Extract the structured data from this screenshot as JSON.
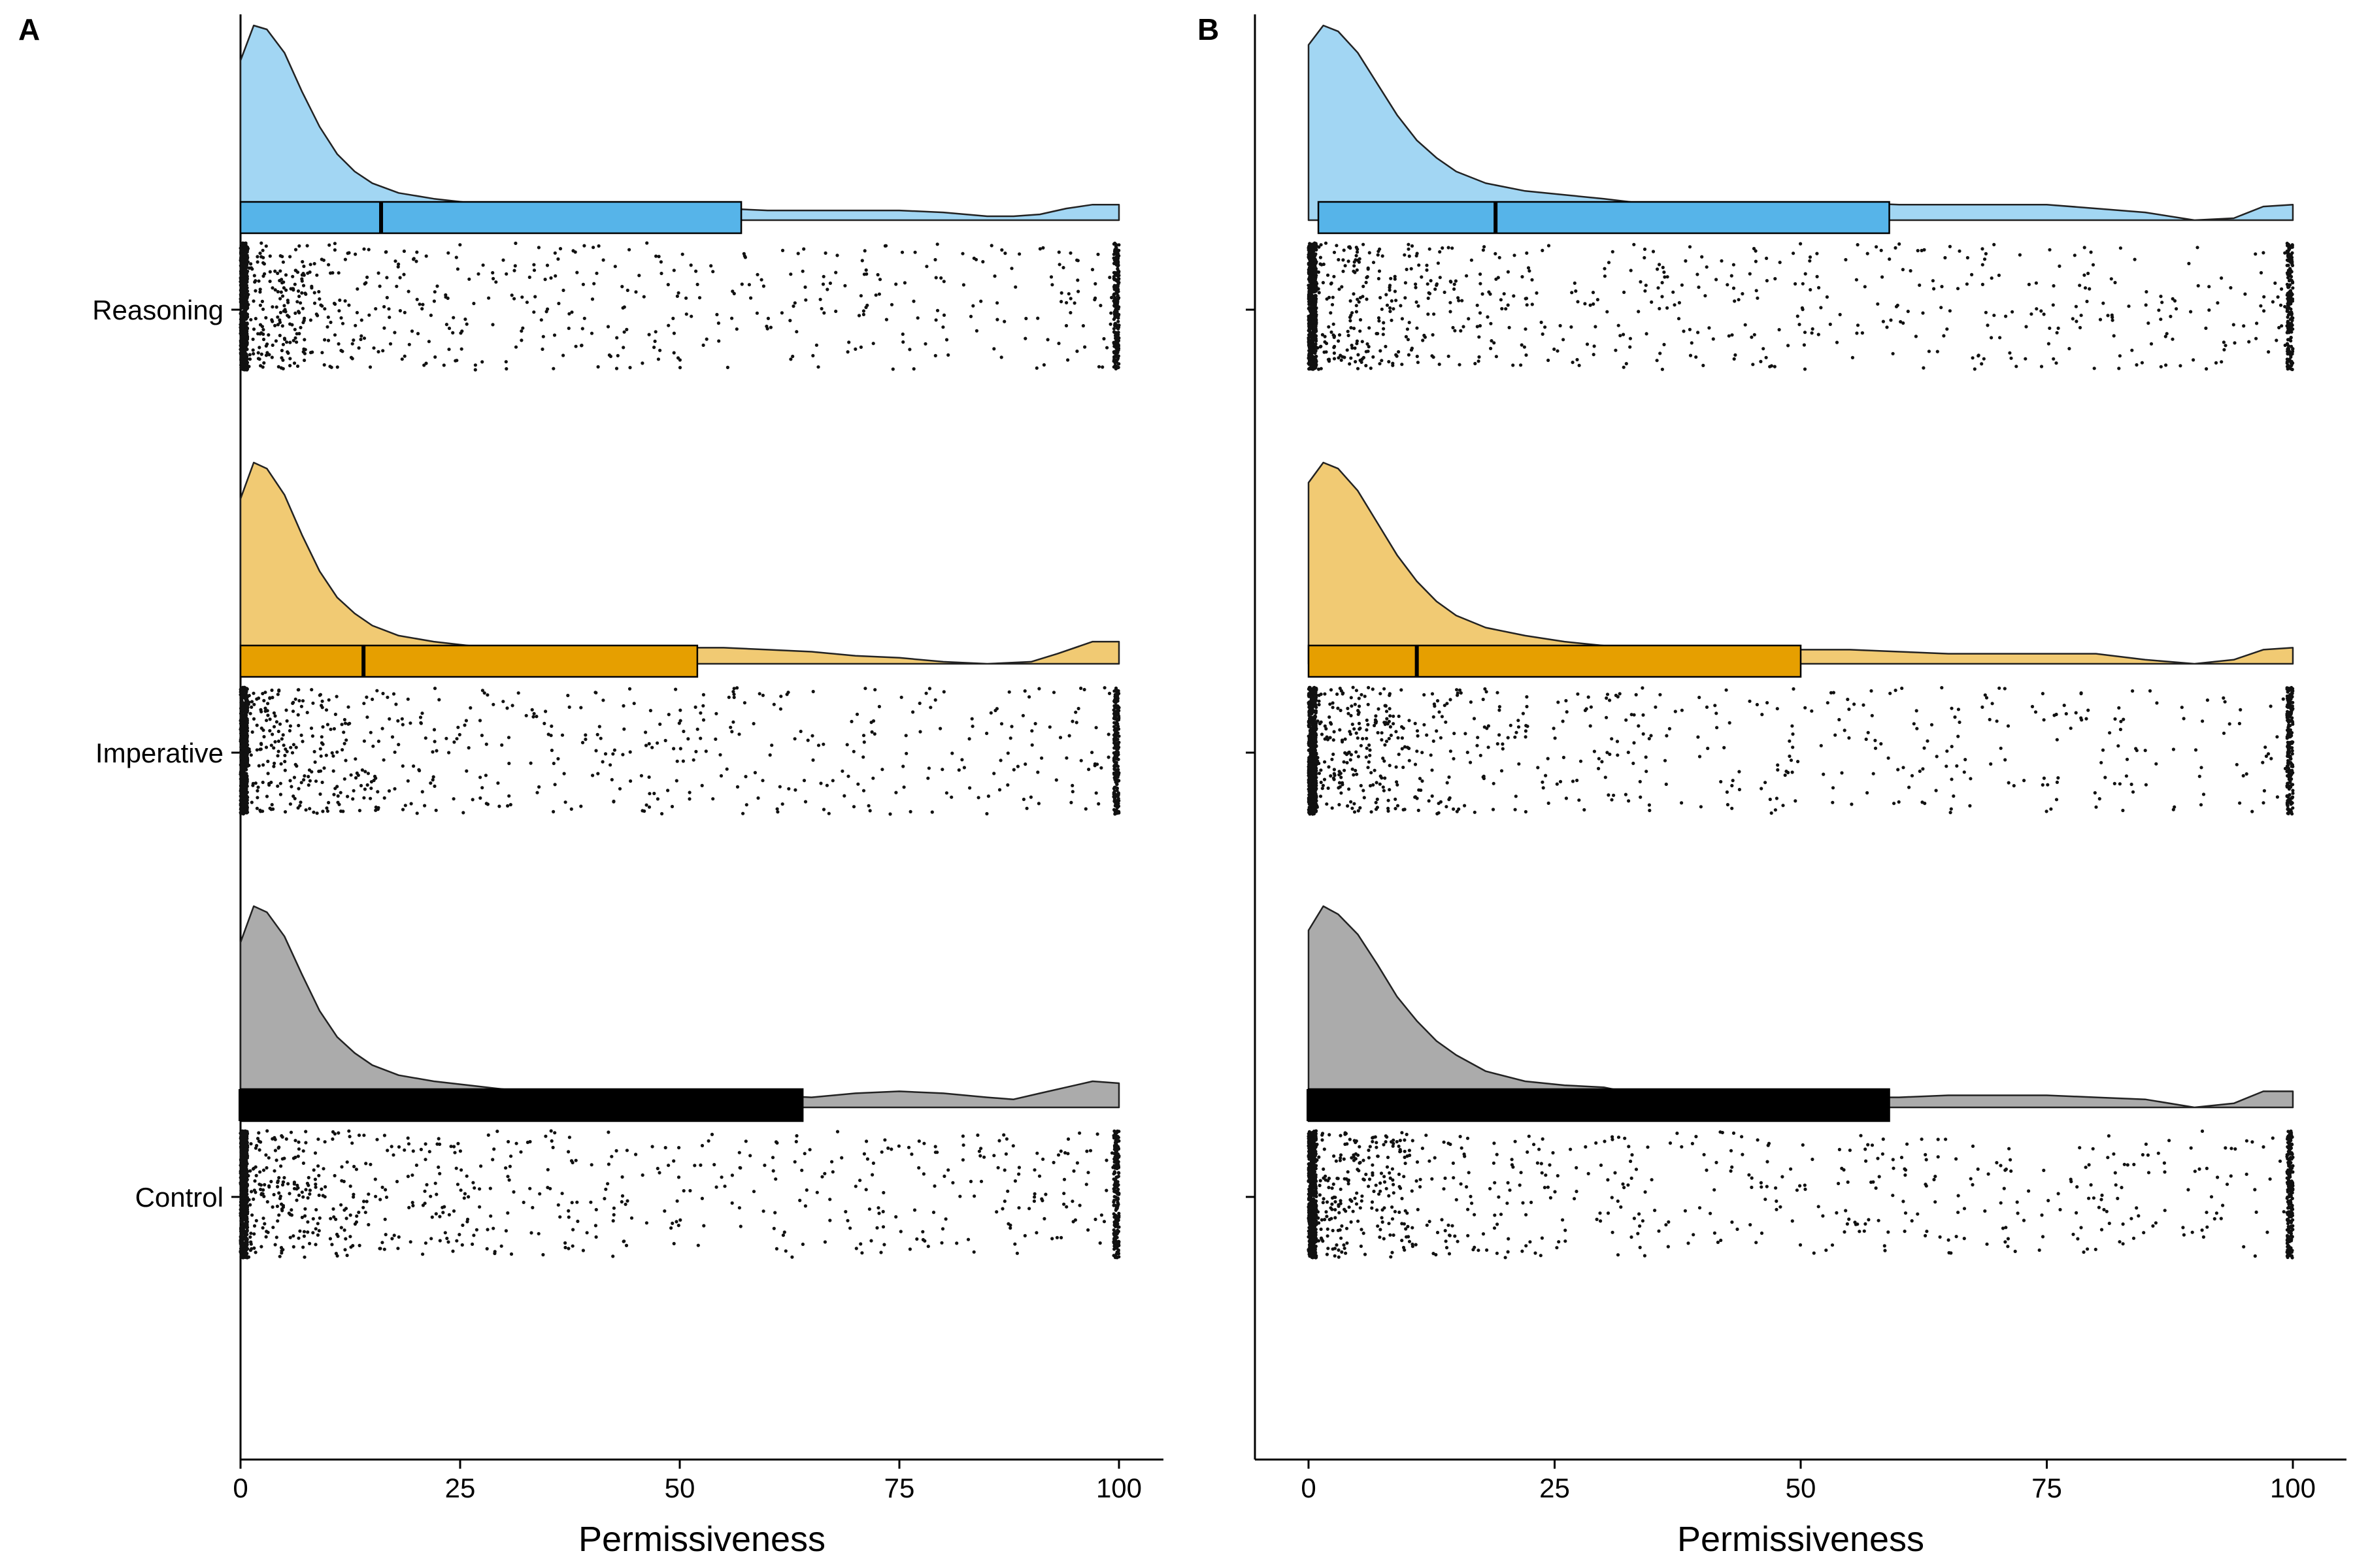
{
  "figure": {
    "panels": [
      "A",
      "B"
    ]
  },
  "chart_data": [
    {
      "panel": "A",
      "type": "raincloud",
      "xlabel": "Permissiveness",
      "xlim": [
        -5.3,
        105.5
      ],
      "xticks": [
        0,
        25,
        50,
        75,
        100
      ],
      "categories": [
        "Reasoning",
        "Imperative",
        "Control"
      ],
      "grid": false,
      "legend": "none",
      "groups": [
        {
          "name": "Reasoning",
          "color": "#56B4E9",
          "box": {
            "q1": 0,
            "median": 16,
            "q3": 57
          },
          "density": {
            "x": [
              0,
              1.5,
              3,
              5,
              7,
              9,
              11,
              13,
              15,
              18,
              22,
              26,
              30,
              35,
              40,
              45,
              50,
              55,
              60,
              65,
              70,
              75,
              80,
              85,
              88,
              91,
              94,
              97,
              100
            ],
            "y": [
              0.82,
              1.0,
              0.98,
              0.86,
              0.66,
              0.48,
              0.34,
              0.25,
              0.19,
              0.14,
              0.11,
              0.09,
              0.08,
              0.06,
              0.03,
              0.03,
              0.06,
              0.06,
              0.05,
              0.05,
              0.05,
              0.05,
              0.04,
              0.02,
              0.02,
              0.03,
              0.06,
              0.08,
              0.08
            ]
          },
          "spike_0": 0.2,
          "spike_100": 0.07
        },
        {
          "name": "Imperative",
          "color": "#E69F00",
          "box": {
            "q1": 0,
            "median": 14,
            "q3": 52
          },
          "density": {
            "x": [
              0,
              1.5,
              3,
              5,
              7,
              9,
              11,
              13,
              15,
              18,
              22,
              26,
              30,
              35,
              40,
              45,
              50,
              55,
              60,
              65,
              70,
              75,
              80,
              85,
              90,
              93,
              97,
              100
            ],
            "y": [
              0.82,
              1.0,
              0.97,
              0.84,
              0.64,
              0.46,
              0.33,
              0.25,
              0.19,
              0.14,
              0.11,
              0.09,
              0.07,
              0.05,
              0.03,
              0.05,
              0.08,
              0.08,
              0.07,
              0.06,
              0.04,
              0.03,
              0.01,
              0.0,
              0.01,
              0.05,
              0.11,
              0.11
            ]
          },
          "spike_0": 0.2,
          "spike_100": 0.07
        },
        {
          "name": "Control",
          "color": "#666666",
          "box": {
            "q1": 0,
            "median": 0,
            "q3": 64
          },
          "density": {
            "x": [
              0,
              1.5,
              3,
              5,
              7,
              9,
              11,
              13,
              15,
              18,
              22,
              26,
              30,
              35,
              40,
              45,
              50,
              55,
              60,
              65,
              70,
              75,
              80,
              85,
              88,
              91,
              94,
              97,
              100
            ],
            "y": [
              0.82,
              1.0,
              0.97,
              0.85,
              0.66,
              0.48,
              0.35,
              0.27,
              0.21,
              0.16,
              0.13,
              0.11,
              0.09,
              0.07,
              0.05,
              0.05,
              0.06,
              0.07,
              0.06,
              0.05,
              0.07,
              0.08,
              0.07,
              0.05,
              0.04,
              0.07,
              0.1,
              0.13,
              0.12
            ]
          },
          "spike_0": 0.2,
          "spike_100": 0.07
        }
      ]
    },
    {
      "panel": "B",
      "type": "raincloud",
      "xlabel": "Permissiveness",
      "xlim": [
        -5.3,
        105.5
      ],
      "xticks": [
        0,
        25,
        50,
        75,
        100
      ],
      "categories": [
        "Reasoning",
        "Imperative",
        "Control"
      ],
      "grid": false,
      "legend": "none",
      "groups": [
        {
          "name": "Reasoning",
          "color": "#56B4E9",
          "box": {
            "q1": 1,
            "median": 19,
            "q3": 59
          },
          "density": {
            "x": [
              0,
              1.5,
              3,
              5,
              7,
              9,
              11,
              13,
              15,
              18,
              22,
              26,
              30,
              35,
              40,
              45,
              50,
              55,
              60,
              65,
              70,
              75,
              80,
              85,
              90,
              94,
              97,
              100
            ],
            "y": [
              0.9,
              1.0,
              0.97,
              0.86,
              0.7,
              0.54,
              0.41,
              0.32,
              0.25,
              0.19,
              0.15,
              0.13,
              0.11,
              0.08,
              0.06,
              0.07,
              0.09,
              0.09,
              0.08,
              0.08,
              0.08,
              0.08,
              0.06,
              0.04,
              0.0,
              0.01,
              0.07,
              0.08
            ]
          },
          "spike_0": 0.2,
          "spike_100": 0.07
        },
        {
          "name": "Imperative",
          "color": "#E69F00",
          "box": {
            "q1": 0,
            "median": 11,
            "q3": 50
          },
          "density": {
            "x": [
              0,
              1.5,
              3,
              5,
              7,
              9,
              11,
              13,
              15,
              18,
              22,
              26,
              30,
              35,
              40,
              45,
              50,
              55,
              60,
              65,
              70,
              75,
              80,
              85,
              90,
              94,
              97,
              100
            ],
            "y": [
              0.9,
              1.0,
              0.97,
              0.86,
              0.7,
              0.54,
              0.41,
              0.31,
              0.24,
              0.18,
              0.14,
              0.11,
              0.09,
              0.07,
              0.03,
              0.05,
              0.07,
              0.07,
              0.06,
              0.05,
              0.05,
              0.05,
              0.05,
              0.02,
              0.0,
              0.02,
              0.07,
              0.08
            ]
          },
          "spike_0": 0.2,
          "spike_100": 0.07
        },
        {
          "name": "Control",
          "color": "#666666",
          "box": {
            "q1": 0,
            "median": 0,
            "q3": 59
          },
          "density": {
            "x": [
              0,
              1.5,
              3,
              5,
              7,
              9,
              11,
              13,
              15,
              18,
              22,
              26,
              30,
              35,
              40,
              45,
              50,
              55,
              60,
              65,
              70,
              75,
              80,
              85,
              90,
              94,
              97,
              100
            ],
            "y": [
              0.88,
              1.0,
              0.96,
              0.86,
              0.71,
              0.55,
              0.43,
              0.33,
              0.26,
              0.18,
              0.13,
              0.11,
              0.1,
              0.05,
              0.02,
              0.04,
              0.05,
              0.05,
              0.05,
              0.06,
              0.06,
              0.06,
              0.05,
              0.04,
              0.0,
              0.02,
              0.08,
              0.08
            ]
          },
          "spike_0": 0.2,
          "spike_100": 0.07
        }
      ]
    }
  ]
}
